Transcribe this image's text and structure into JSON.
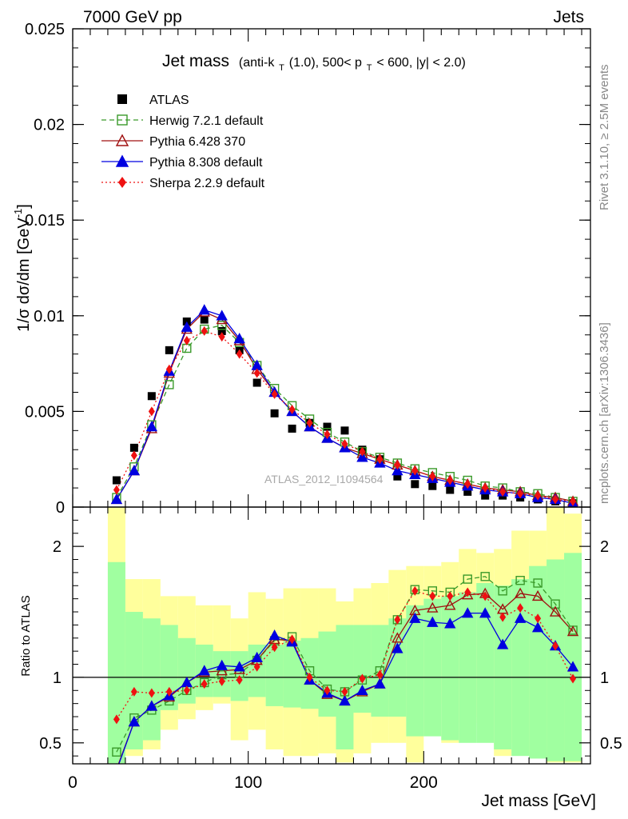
{
  "header": {
    "left": "7000 GeV pp",
    "right": "Jets"
  },
  "side_labels": {
    "top": "Rivet 3.1.10, ≥ 2.5M events",
    "bottom": "mcplots.cern.ch [arXiv:1306.3436]"
  },
  "watermark": "ATLAS_2012_I1094564",
  "colors": {
    "data": "#000000",
    "herwig": "#3a9a2a",
    "pythia6": "#a01010",
    "pythia8": "#0000e0",
    "sherpa": "#ee1111",
    "band_inner": "#a0ffa0",
    "band_outer": "#ffff9c"
  },
  "chart_data": [
    {
      "type": "scatter",
      "title": {
        "main": "Jet mass",
        "paren_open": "(anti-k",
        "k_sub": "T",
        "cone": "(1.0), 500< p",
        "pt_sub": "T",
        "cuts": " < 600, |y| < 2.0)"
      },
      "ylabel": "1/σ dσ/dm [GeV",
      "ylabel_sup": "-1",
      "ylabel_close": "]",
      "xlim": [
        0,
        295
      ],
      "ylim": [
        0,
        0.025
      ],
      "y_ticks": [
        {
          "value": 0,
          "label": "0"
        },
        {
          "value": 0.005,
          "label": "0.005"
        },
        {
          "value": 0.01,
          "label": "0.01"
        },
        {
          "value": 0.015,
          "label": "0.015"
        },
        {
          "value": 0.02,
          "label": "0.02"
        },
        {
          "value": 0.025,
          "label": "0.025"
        }
      ],
      "legend_position": "top-left",
      "x": [
        25,
        35,
        45,
        55,
        65,
        75,
        85,
        95,
        105,
        115,
        125,
        135,
        145,
        155,
        165,
        175,
        185,
        195,
        205,
        215,
        225,
        235,
        245,
        255,
        265,
        275,
        285
      ],
      "series": [
        {
          "key": "data",
          "name": "ATLAS",
          "marker": "square-filled",
          "line": "none",
          "values": [
            0.0014,
            0.0031,
            0.0058,
            0.0082,
            0.0097,
            0.0098,
            0.0092,
            0.0082,
            0.0065,
            0.0049,
            0.0041,
            0.0044,
            0.0042,
            0.004,
            0.003,
            0.0025,
            0.0016,
            0.0012,
            0.0011,
            0.0009,
            0.0008,
            0.0006,
            0.0006,
            0.0005,
            0.0004,
            0.0003,
            0.0002
          ]
        },
        {
          "key": "herwig",
          "name": "Herwig 7.2.1 default",
          "marker": "square-open",
          "line": "dashed",
          "values": [
            0.0005,
            0.0021,
            0.0043,
            0.0064,
            0.0083,
            0.0093,
            0.0095,
            0.0086,
            0.0074,
            0.0062,
            0.0053,
            0.0046,
            0.0039,
            0.0034,
            0.0029,
            0.0026,
            0.0023,
            0.002,
            0.0018,
            0.0016,
            0.0014,
            0.0011,
            0.001,
            0.0008,
            0.0007,
            0.0005,
            0.0003
          ]
        },
        {
          "key": "pythia6",
          "name": "Pythia 6.428 370",
          "marker": "triangle-open",
          "line": "solid",
          "values": [
            0.0004,
            0.0019,
            0.0041,
            0.007,
            0.0093,
            0.0102,
            0.0098,
            0.0087,
            0.0072,
            0.006,
            0.005,
            0.0042,
            0.0036,
            0.0031,
            0.0028,
            0.0025,
            0.0022,
            0.0019,
            0.0016,
            0.0014,
            0.0012,
            0.001,
            0.0009,
            0.0008,
            0.0006,
            0.0005,
            0.0003
          ]
        },
        {
          "key": "pythia8",
          "name": "Pythia 8.308 default",
          "marker": "triangle-filled",
          "line": "solid",
          "values": [
            0.0004,
            0.0019,
            0.0042,
            0.0071,
            0.0094,
            0.0103,
            0.01,
            0.0088,
            0.0074,
            0.006,
            0.005,
            0.0042,
            0.0036,
            0.0031,
            0.0026,
            0.0023,
            0.0019,
            0.0017,
            0.0015,
            0.0013,
            0.0011,
            0.0009,
            0.0008,
            0.0007,
            0.0005,
            0.0004,
            0.0002
          ]
        },
        {
          "key": "sherpa",
          "name": "Sherpa 2.2.9 default",
          "marker": "diamond-filled",
          "line": "dotted",
          "values": [
            0.0009,
            0.0027,
            0.005,
            0.0072,
            0.0087,
            0.0092,
            0.0089,
            0.008,
            0.007,
            0.0059,
            0.0051,
            0.0044,
            0.0038,
            0.0033,
            0.0029,
            0.0025,
            0.0022,
            0.0019,
            0.0016,
            0.0014,
            0.0012,
            0.001,
            0.0008,
            0.0007,
            0.0006,
            0.0004,
            0.0003
          ]
        }
      ]
    },
    {
      "type": "scatter",
      "ylabel": "Ratio to ATLAS",
      "xlabel": "Jet mass [GeV]",
      "xlim": [
        0,
        295
      ],
      "ylim": [
        0.34,
        2.3
      ],
      "x_ticks": [
        {
          "value": 0,
          "label": "0"
        },
        {
          "value": 100,
          "label": "100"
        },
        {
          "value": 200,
          "label": "200"
        }
      ],
      "y_ticks": [
        {
          "value": 0.5,
          "label": "0.5"
        },
        {
          "value": 1,
          "label": "1"
        },
        {
          "value": 2,
          "label": "2"
        }
      ],
      "reference_line": 1,
      "bin_edges": [
        20,
        30,
        40,
        50,
        60,
        70,
        80,
        90,
        100,
        110,
        120,
        130,
        140,
        150,
        160,
        170,
        180,
        190,
        200,
        210,
        220,
        230,
        240,
        250,
        260,
        270,
        280,
        290
      ],
      "band_inner": {
        "lower": [
          0.34,
          0.45,
          0.52,
          0.75,
          0.8,
          0.85,
          0.85,
          0.82,
          0.85,
          0.78,
          0.77,
          0.76,
          0.7,
          0.45,
          0.73,
          0.7,
          0.7,
          0.55,
          0.55,
          0.52,
          0.5,
          0.5,
          0.45,
          0.4,
          0.38,
          0.36,
          0.36
        ],
        "upper": [
          1.88,
          1.5,
          1.45,
          1.4,
          1.3,
          1.25,
          1.2,
          1.2,
          1.25,
          1.25,
          1.28,
          1.3,
          1.35,
          1.4,
          1.4,
          1.4,
          1.45,
          1.55,
          1.6,
          1.62,
          1.65,
          1.72,
          1.7,
          1.75,
          1.85,
          1.9,
          1.95
        ]
      },
      "band_outer": {
        "lower": [
          0.34,
          0.4,
          0.45,
          0.6,
          0.68,
          0.75,
          0.8,
          0.52,
          0.6,
          0.45,
          0.4,
          0.4,
          0.42,
          0.35,
          0.42,
          0.5,
          0.5,
          0.35,
          0.8,
          0.5,
          0.65,
          0.7,
          0.4,
          0.5,
          0.4,
          0.35,
          0.35
        ],
        "upper": [
          2.3,
          1.75,
          1.75,
          1.62,
          1.62,
          1.55,
          1.55,
          1.45,
          1.65,
          1.6,
          1.68,
          1.68,
          1.68,
          1.58,
          1.68,
          1.72,
          1.82,
          1.85,
          1.85,
          1.88,
          1.98,
          1.95,
          1.98,
          2.12,
          2.12,
          2.3,
          2.25
        ]
      },
      "x": [
        25,
        35,
        45,
        55,
        65,
        75,
        85,
        95,
        105,
        115,
        125,
        135,
        145,
        155,
        165,
        175,
        185,
        195,
        205,
        215,
        225,
        235,
        245,
        255,
        265,
        275,
        285
      ],
      "series": [
        {
          "key": "herwig",
          "values": [
            0.43,
            0.69,
            0.75,
            0.82,
            0.9,
            0.96,
            1.02,
            1.03,
            1.13,
            1.28,
            1.31,
            1.05,
            0.91,
            0.89,
            0.98,
            1.05,
            1.44,
            1.67,
            1.66,
            1.65,
            1.75,
            1.77,
            1.66,
            1.74,
            1.72,
            1.56,
            1.36
          ]
        },
        {
          "key": "pythia6",
          "values": [
            0.3,
            0.66,
            0.78,
            0.85,
            0.96,
            1.04,
            1.05,
            1.06,
            1.13,
            1.29,
            1.28,
            0.98,
            0.87,
            0.82,
            0.89,
            0.95,
            1.3,
            1.51,
            1.53,
            1.55,
            1.63,
            1.64,
            1.52,
            1.64,
            1.62,
            1.5,
            1.35
          ]
        },
        {
          "key": "pythia8",
          "values": [
            0.29,
            0.66,
            0.78,
            0.86,
            0.96,
            1.05,
            1.09,
            1.08,
            1.15,
            1.32,
            1.27,
            0.98,
            0.88,
            0.82,
            0.9,
            0.95,
            1.22,
            1.45,
            1.42,
            1.41,
            1.49,
            1.49,
            1.25,
            1.45,
            1.38,
            1.24,
            1.08
          ]
        },
        {
          "key": "sherpa",
          "values": [
            0.68,
            0.89,
            0.88,
            0.89,
            0.9,
            0.95,
            0.97,
            0.98,
            1.08,
            1.23,
            1.29,
            1.0,
            0.9,
            0.89,
            0.99,
            1.02,
            1.44,
            1.66,
            1.62,
            1.62,
            1.65,
            1.62,
            1.46,
            1.53,
            1.45,
            1.24,
            0.99
          ]
        }
      ]
    }
  ]
}
